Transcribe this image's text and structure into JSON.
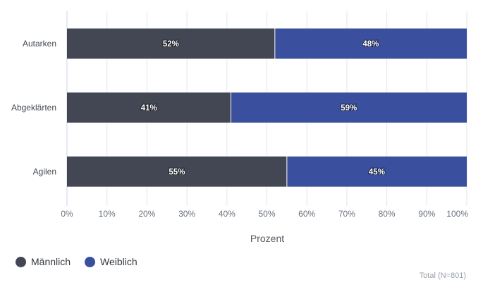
{
  "chart_data": {
    "type": "bar",
    "orientation": "horizontal",
    "stacked": true,
    "categories": [
      "Autarken",
      "Abgeklärten",
      "Agilen"
    ],
    "series": [
      {
        "name": "Männlich",
        "values": [
          52,
          41,
          55
        ],
        "color": "#434753"
      },
      {
        "name": "Weiblich",
        "values": [
          48,
          59,
          45
        ],
        "color": "#3a4f9e"
      }
    ],
    "data_labels": [
      [
        "52%",
        "41%",
        "55%"
      ],
      [
        "48%",
        "59%",
        "45%"
      ]
    ],
    "xlabel": "Prozent",
    "xlim": [
      0,
      100
    ],
    "xticks": [
      "0%",
      "10%",
      "20%",
      "30%",
      "40%",
      "50%",
      "60%",
      "70%",
      "80%",
      "90%",
      "100%"
    ],
    "grid": true,
    "legend": "bottom-left"
  },
  "legend": {
    "items": [
      {
        "label": "Männlich",
        "color": "#434753"
      },
      {
        "label": "Weiblich",
        "color": "#3a4f9e"
      }
    ]
  },
  "note": "Total (N=801)"
}
